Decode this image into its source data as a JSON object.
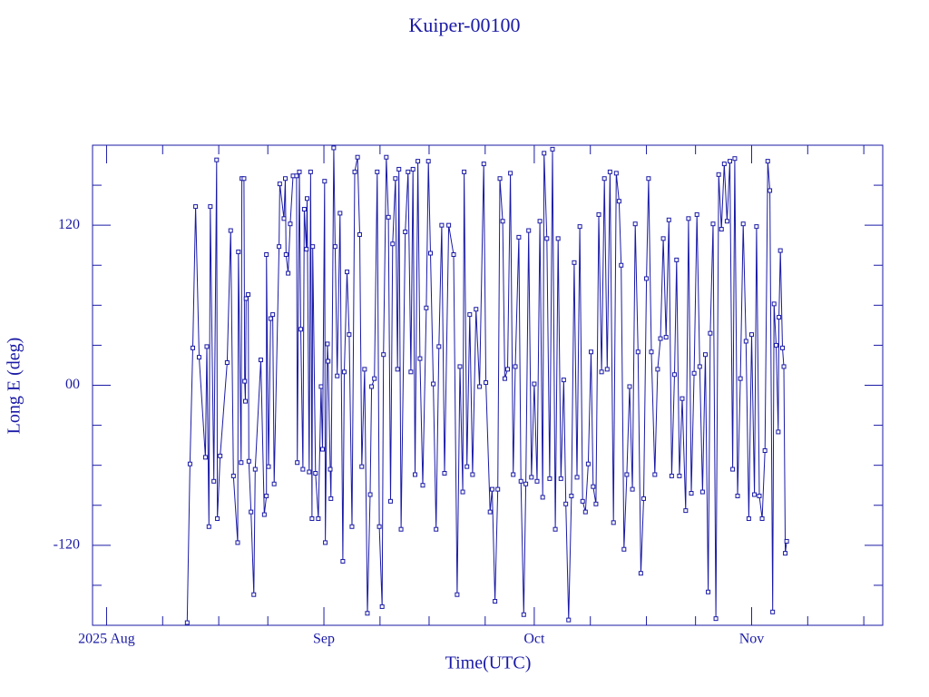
{
  "chart_data": {
    "type": "line",
    "title": "Kuiper-00100",
    "xlabel": "Time(UTC)",
    "ylabel": "Long E (deg)",
    "xlim": [
      -2,
      110.7
    ],
    "ylim": [
      -180,
      180
    ],
    "xticks": [
      {
        "value": 0,
        "label": "2025 Aug"
      },
      {
        "value": 31,
        "label": "Sep"
      },
      {
        "value": 61,
        "label": "Oct"
      },
      {
        "value": 92,
        "label": "Nov"
      }
    ],
    "xminorticks": [
      8,
      16,
      23,
      39,
      46,
      54,
      69,
      77,
      84,
      100,
      108
    ],
    "yticks": [
      {
        "value": -120,
        "label": "-120"
      },
      {
        "value": 0,
        "label": "00"
      },
      {
        "value": 120,
        "label": "120"
      }
    ],
    "yminorticks": [
      -150,
      -90,
      -60,
      -30,
      30,
      60,
      90,
      150
    ],
    "color": "#1a1aa6",
    "x": [
      11.5,
      11.9,
      12.3,
      12.7,
      13.2,
      14.1,
      14.3,
      14.6,
      14.8,
      15.3,
      15.7,
      15.8,
      16.2,
      17.2,
      17.7,
      18.1,
      18.7,
      18.8,
      19.2,
      19.3,
      19.6,
      19.7,
      19.8,
      19.9,
      20.2,
      20.3,
      20.6,
      21.0,
      21.2,
      22.0,
      22.5,
      22.8,
      22.8,
      23.1,
      23.4,
      23.7,
      23.9,
      24.6,
      24.7,
      25.3,
      25.5,
      25.6,
      25.9,
      26.2,
      26.6,
      27.1,
      27.2,
      27.5,
      27.7,
      28.0,
      28.2,
      28.5,
      28.6,
      28.9,
      29.1,
      29.3,
      29.4,
      29.8,
      30.2,
      30.6,
      30.8,
      31.1,
      31.2,
      31.5,
      31.6,
      31.9,
      32.0,
      32.4,
      32.6,
      32.9,
      33.3,
      33.7,
      33.9,
      34.3,
      34.6,
      35.0,
      35.4,
      35.8,
      36.1,
      36.4,
      36.8,
      37.2,
      37.6,
      37.8,
      38.2,
      38.6,
      38.9,
      39.3,
      39.5,
      39.9,
      40.2,
      40.5,
      40.8,
      41.2,
      41.5,
      41.7,
      42.0,
      42.6,
      43.0,
      43.4,
      43.7,
      44.0,
      44.4,
      44.7,
      45.1,
      45.6,
      45.9,
      46.2,
      46.6,
      47.0,
      47.4,
      47.8,
      48.2,
      48.8,
      49.5,
      50.0,
      50.4,
      50.8,
      51.0,
      51.4,
      51.8,
      52.2,
      52.7,
      53.2,
      53.8,
      54.1,
      54.7,
      55.0,
      55.4,
      55.8,
      56.1,
      56.5,
      56.8,
      57.2,
      57.6,
      58.0,
      58.3,
      58.8,
      59.1,
      59.5,
      59.8,
      60.2,
      60.6,
      61.0,
      61.4,
      61.8,
      62.2,
      62.4,
      62.8,
      63.2,
      63.6,
      64.0,
      64.4,
      64.8,
      65.2,
      65.5,
      65.9,
      66.3,
      66.7,
      67.1,
      67.5,
      67.9,
      68.3,
      68.7,
      69.1,
      69.4,
      69.8,
      70.2,
      70.6,
      71.0,
      71.4,
      71.8,
      72.3,
      72.7,
      73.1,
      73.4,
      73.8,
      74.2,
      74.6,
      75.0,
      75.4,
      75.8,
      76.2,
      76.6,
      77.0,
      77.3,
      77.7,
      78.2,
      78.6,
      79.0,
      79.4,
      79.8,
      80.2,
      80.6,
      81.0,
      81.3,
      81.7,
      82.1,
      82.6,
      83.0,
      83.4,
      83.8,
      84.2,
      84.6,
      85.0,
      85.4,
      85.8,
      86.1,
      86.5,
      86.9,
      87.3,
      87.7,
      88.1,
      88.5,
      88.9,
      89.3,
      89.6,
      90.0,
      90.4,
      90.8,
      91.2,
      91.6,
      92.0,
      92.4,
      92.7,
      93.1,
      93.5,
      93.9,
      94.3,
      94.6,
      95.0,
      95.2,
      95.5,
      95.8,
      95.9,
      96.1,
      96.4,
      96.6,
      96.8,
      97.0
    ],
    "values": [
      -178,
      -59,
      28,
      134,
      21,
      -54,
      29,
      -106,
      134,
      -72,
      169,
      -100,
      -53,
      17,
      116,
      -68,
      -118,
      100,
      -58,
      155,
      155,
      3,
      -12,
      65,
      68,
      -57,
      -95,
      -157,
      -63,
      19,
      -97,
      -83,
      98,
      -61,
      50,
      53,
      -74,
      104,
      151,
      125,
      155,
      98,
      84,
      121,
      157,
      157,
      -58,
      160,
      42,
      -63,
      132,
      102,
      140,
      -65,
      160,
      -100,
      104,
      -66,
      -100,
      -1,
      -48,
      153,
      -118,
      31,
      18,
      -63,
      -85,
      178,
      104,
      7,
      129,
      -132,
      10,
      85,
      38,
      -106,
      160,
      171,
      113,
      -61,
      12,
      -171,
      -82,
      -1,
      5,
      160,
      -106,
      -166,
      23,
      171,
      126,
      -87,
      106,
      155,
      12,
      162,
      -108,
      115,
      160,
      10,
      162,
      -67,
      168,
      20,
      -75,
      58,
      168,
      99,
      1,
      -108,
      29,
      120,
      -66,
      120,
      98,
      -157,
      14,
      -80,
      160,
      -61,
      53,
      -67,
      57,
      -1,
      166,
      2,
      -95,
      -78,
      -162,
      -78,
      155,
      123,
      5,
      12,
      159,
      -67,
      14,
      111,
      -72,
      -172,
      -74,
      116,
      -69,
      1,
      -72,
      123,
      -84,
      174,
      110,
      -70,
      177,
      -108,
      110,
      -70,
      4,
      -89,
      -176,
      -83,
      92,
      -69,
      119,
      -87,
      -95,
      -59,
      25,
      -76,
      -89,
      128,
      10,
      155,
      12,
      160,
      -103,
      159,
      138,
      90,
      -123,
      -67,
      -1,
      -78,
      121,
      25,
      -141,
      -85,
      80,
      155,
      25,
      -67,
      12,
      35,
      110,
      36,
      124,
      -68,
      8,
      94,
      -68,
      -10,
      -94,
      125,
      -81,
      9,
      128,
      14,
      -80,
      23,
      -155,
      39,
      121,
      -175,
      158,
      117,
      166,
      123,
      168,
      -63,
      170,
      -83,
      5,
      121,
      33,
      -100,
      38,
      -82,
      119,
      -83,
      -100,
      -49,
      168,
      146,
      -170,
      61,
      30,
      -35,
      51,
      101,
      28,
      14,
      -126,
      -117
    ]
  }
}
